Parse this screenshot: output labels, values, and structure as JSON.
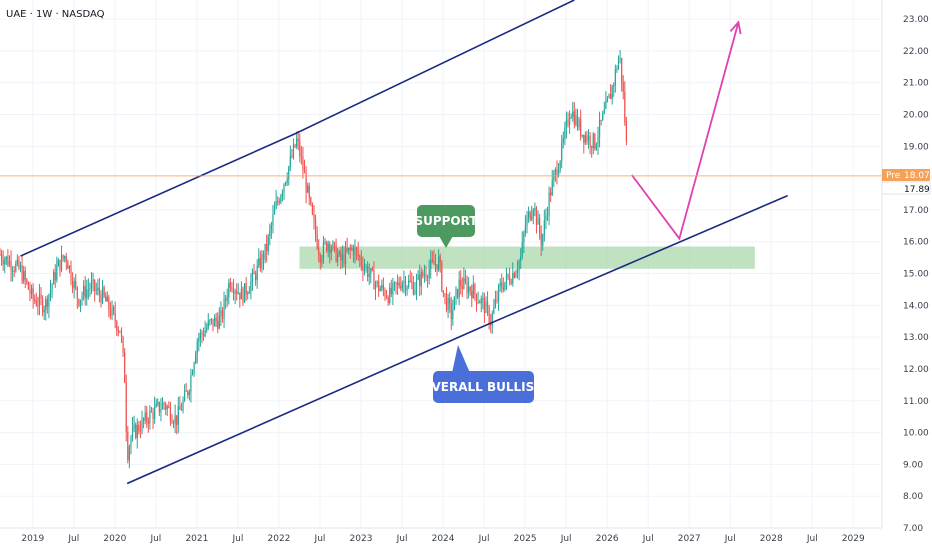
{
  "header": {
    "symbol": "UAE · 1W · NASDAQ"
  },
  "price_axis": {
    "ticks": [
      "23.00",
      "22.00",
      "21.00",
      "20.00",
      "19.00",
      "17.00",
      "16.00",
      "15.00",
      "14.00",
      "13.00",
      "12.00",
      "11.00",
      "10.00",
      "9.00",
      "8.00",
      "7.00"
    ],
    "tick_values": [
      23,
      22,
      21,
      20,
      19,
      17,
      16,
      15,
      14,
      13,
      12,
      11,
      10,
      9,
      8,
      7
    ]
  },
  "time_axis": {
    "ticks": [
      "2019",
      "Jul",
      "2020",
      "Jul",
      "2021",
      "Jul",
      "2022",
      "Jul",
      "2023",
      "Jul",
      "2024",
      "Jul",
      "2025",
      "Jul",
      "2026",
      "Jul",
      "2027",
      "Jul",
      "2028",
      "Jul",
      "2029"
    ],
    "tick_times": [
      2019.0,
      2019.5,
      2020.0,
      2020.5,
      2021.0,
      2021.5,
      2022.0,
      2022.5,
      2023.0,
      2023.5,
      2024.0,
      2024.5,
      2025.0,
      2025.5,
      2026.0,
      2026.5,
      2027.0,
      2027.5,
      2028.0,
      2028.5,
      2029.0
    ]
  },
  "price_tags": {
    "pre_label": "Pre",
    "pre_value": "18.07",
    "last_value": "17.89"
  },
  "callouts": {
    "support": "SUPPORT",
    "bullish": "OVERALL BULLISH"
  },
  "colors": {
    "up": "#26a69a",
    "down": "#ef5350",
    "channel": "#1a2a80",
    "support_zone": "#a5d6a7",
    "projection": "#e040b4",
    "support_callout": "#4c9a5f",
    "bullish_callout": "#4a6fd8",
    "pre_tag": "#f5a15a",
    "last_tag": "#ffffff"
  },
  "chart_data": {
    "type": "candlestick",
    "title": "UAE · 1W · NASDAQ",
    "xlim": [
      2018.6,
      2029.35
    ],
    "ylim": [
      7,
      23.6
    ],
    "channel_lines": [
      {
        "name": "upper",
        "points": [
          [
            2018.85,
            15.55
          ],
          [
            2022.2,
            19.4
          ],
          [
            2025.6,
            23.6
          ]
        ]
      },
      {
        "name": "lower",
        "points": [
          [
            2020.15,
            8.4
          ],
          [
            2024.5,
            13.35
          ],
          [
            2028.2,
            17.45
          ]
        ]
      }
    ],
    "support_zone": {
      "x": [
        2022.25,
        2027.8
      ],
      "y": [
        15.15,
        15.85
      ]
    },
    "projection_path": [
      [
        2026.3,
        18.1
      ],
      [
        2026.88,
        16.1
      ],
      [
        2027.6,
        22.9
      ]
    ],
    "pre_market_price": 18.07,
    "last_price": 17.89,
    "price_path": [
      [
        2018.6,
        15.6
      ],
      [
        2018.85,
        15.1
      ],
      [
        2019.0,
        14.2
      ],
      [
        2019.15,
        14.0
      ],
      [
        2019.3,
        15.2
      ],
      [
        2019.4,
        15.6
      ],
      [
        2019.55,
        14.2
      ],
      [
        2019.7,
        14.6
      ],
      [
        2019.85,
        14.3
      ],
      [
        2019.95,
        13.8
      ],
      [
        2020.07,
        13.2
      ],
      [
        2020.12,
        11.7
      ],
      [
        2020.15,
        9.3
      ],
      [
        2020.2,
        9.9
      ],
      [
        2020.3,
        10.2
      ],
      [
        2020.45,
        10.6
      ],
      [
        2020.6,
        10.9
      ],
      [
        2020.75,
        10.4
      ],
      [
        2020.9,
        11.4
      ],
      [
        2021.0,
        12.9
      ],
      [
        2021.15,
        13.4
      ],
      [
        2021.3,
        13.6
      ],
      [
        2021.4,
        14.8
      ],
      [
        2021.55,
        14.3
      ],
      [
        2021.7,
        14.9
      ],
      [
        2021.85,
        15.8
      ],
      [
        2021.95,
        17.0
      ],
      [
        2022.05,
        17.8
      ],
      [
        2022.15,
        18.6
      ],
      [
        2022.22,
        19.2
      ],
      [
        2022.3,
        18.2
      ],
      [
        2022.4,
        16.8
      ],
      [
        2022.5,
        15.6
      ],
      [
        2022.6,
        16.0
      ],
      [
        2022.75,
        15.4
      ],
      [
        2022.9,
        15.8
      ],
      [
        2023.05,
        15.2
      ],
      [
        2023.2,
        14.6
      ],
      [
        2023.35,
        14.3
      ],
      [
        2023.5,
        14.8
      ],
      [
        2023.65,
        14.6
      ],
      [
        2023.8,
        15.1
      ],
      [
        2023.95,
        15.4
      ],
      [
        2024.0,
        14.4
      ],
      [
        2024.1,
        13.7
      ],
      [
        2024.2,
        14.7
      ],
      [
        2024.35,
        14.5
      ],
      [
        2024.5,
        14.0
      ],
      [
        2024.58,
        13.5
      ],
      [
        2024.7,
        14.6
      ],
      [
        2024.85,
        15.0
      ],
      [
        2024.95,
        15.5
      ],
      [
        2025.0,
        16.5
      ],
      [
        2025.1,
        17.2
      ],
      [
        2025.2,
        16.0
      ],
      [
        2025.3,
        17.5
      ],
      [
        2025.45,
        18.9
      ],
      [
        2025.55,
        20.2
      ],
      [
        2025.7,
        19.4
      ],
      [
        2025.85,
        19.1
      ],
      [
        2025.95,
        19.9
      ],
      [
        2026.05,
        20.7
      ],
      [
        2026.15,
        21.9
      ],
      [
        2026.2,
        20.5
      ],
      [
        2026.25,
        18.4
      ]
    ]
  }
}
